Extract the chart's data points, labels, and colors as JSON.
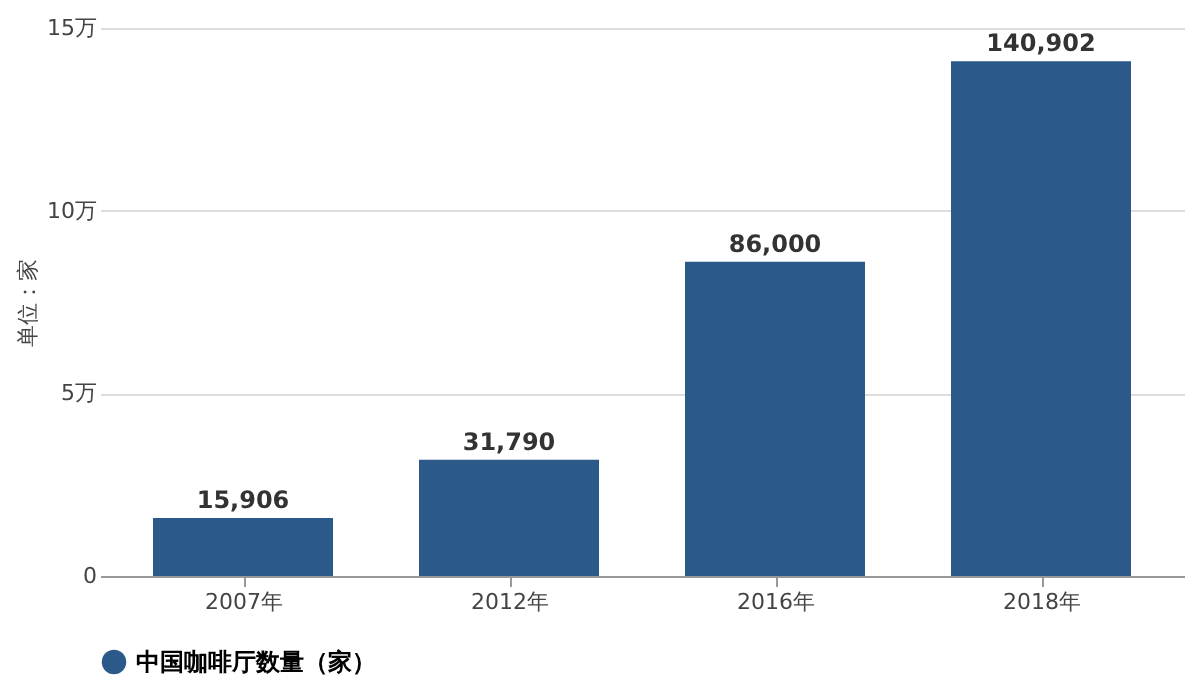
{
  "chart_data": {
    "type": "bar",
    "ylabel": "单位：家",
    "categories": [
      "2007年",
      "2012年",
      "2016年",
      "2018年"
    ],
    "series": [
      {
        "name": "中国咖啡厅数量（家）",
        "color": "#2b5a8a",
        "values": [
          1.5906,
          3.179,
          8.6,
          14.0902
        ]
      }
    ],
    "value_labels": [
      "15,906",
      "31,790",
      "86,000",
      "140,902"
    ],
    "ylim": [
      0,
      15
    ],
    "yticks": [
      0,
      {
        "value": 5,
        "label": "5万"
      },
      {
        "value": 10,
        "label": "10万"
      },
      {
        "value": 15,
        "label": "15万"
      }
    ],
    "grid": "y",
    "legend": "bottom"
  }
}
